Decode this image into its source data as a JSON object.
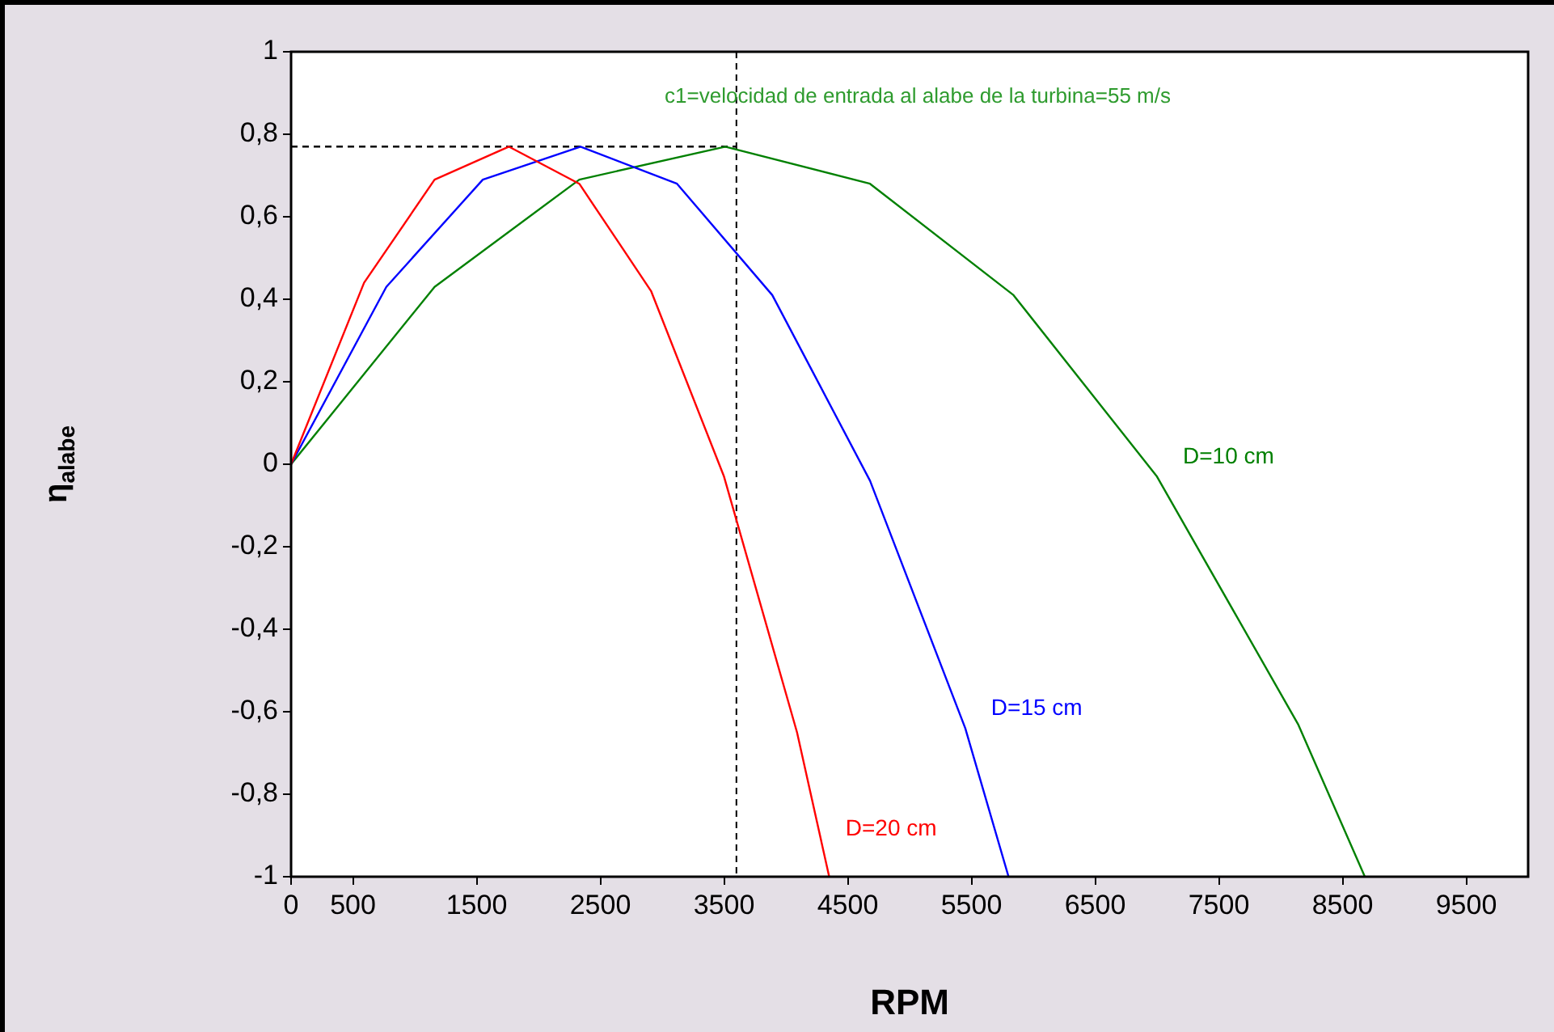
{
  "chart_data": {
    "type": "line",
    "xlabel": "RPM",
    "ylabel": "η$_{alabe}$",
    "annotations": [
      "c1=velocidad de entrada al alabe de la turbina=55 m/s"
    ],
    "xlim": [
      0,
      10000
    ],
    "xticks": [
      0,
      500,
      1500,
      2500,
      3500,
      4500,
      5500,
      6500,
      7500,
      8500,
      9500
    ],
    "ylim": [
      -1,
      1
    ],
    "yticks": [
      {
        "value": -1,
        "label": "-1"
      },
      {
        "value": -0.8,
        "label": "-0,8"
      },
      {
        "value": -0.6,
        "label": "-0,6"
      },
      {
        "value": -0.4,
        "label": "-0,4"
      },
      {
        "value": -0.2,
        "label": "-0,2"
      },
      {
        "value": 0,
        "label": "0"
      },
      {
        "value": 0.2,
        "label": "0,2"
      },
      {
        "value": 0.4,
        "label": "0,4"
      },
      {
        "value": 0.6,
        "label": "0,6"
      },
      {
        "value": 0.8,
        "label": "0,8"
      },
      {
        "value": 1,
        "label": "1"
      }
    ],
    "ref_lines": [
      {
        "axis": "x",
        "value": 3600,
        "color": "#000000",
        "line_style": "dashed"
      }
    ],
    "series": [
      {
        "name": "D=20 cm",
        "color": "#ff0000",
        "x": [
          0,
          590,
          1160,
          1760,
          2330,
          2910,
          3500,
          4090,
          4350
        ],
        "values": [
          0,
          0.44,
          0.69,
          0.77,
          0.68,
          0.42,
          -0.03,
          -0.65,
          -1
        ]
      },
      {
        "name": "D=15 cm",
        "color": "#0000ff",
        "x": [
          0,
          770,
          1550,
          2340,
          3120,
          3890,
          4680,
          5450,
          5800
        ],
        "values": [
          0,
          0.43,
          0.69,
          0.77,
          0.68,
          0.41,
          -0.04,
          -0.64,
          -1
        ]
      },
      {
        "name": "D=10 cm",
        "color": "#008000",
        "x": [
          0,
          1160,
          2330,
          3510,
          4680,
          5840,
          7000,
          8140,
          8680
        ],
        "values": [
          0,
          0.43,
          0.69,
          0.77,
          0.68,
          0.41,
          -0.03,
          -0.63,
          -1
        ]
      },
      {
        "color": "#000000",
        "line_style": "dashed",
        "x": [
          0,
          3600
        ],
        "values": [
          0.77,
          0.77
        ]
      }
    ]
  }
}
